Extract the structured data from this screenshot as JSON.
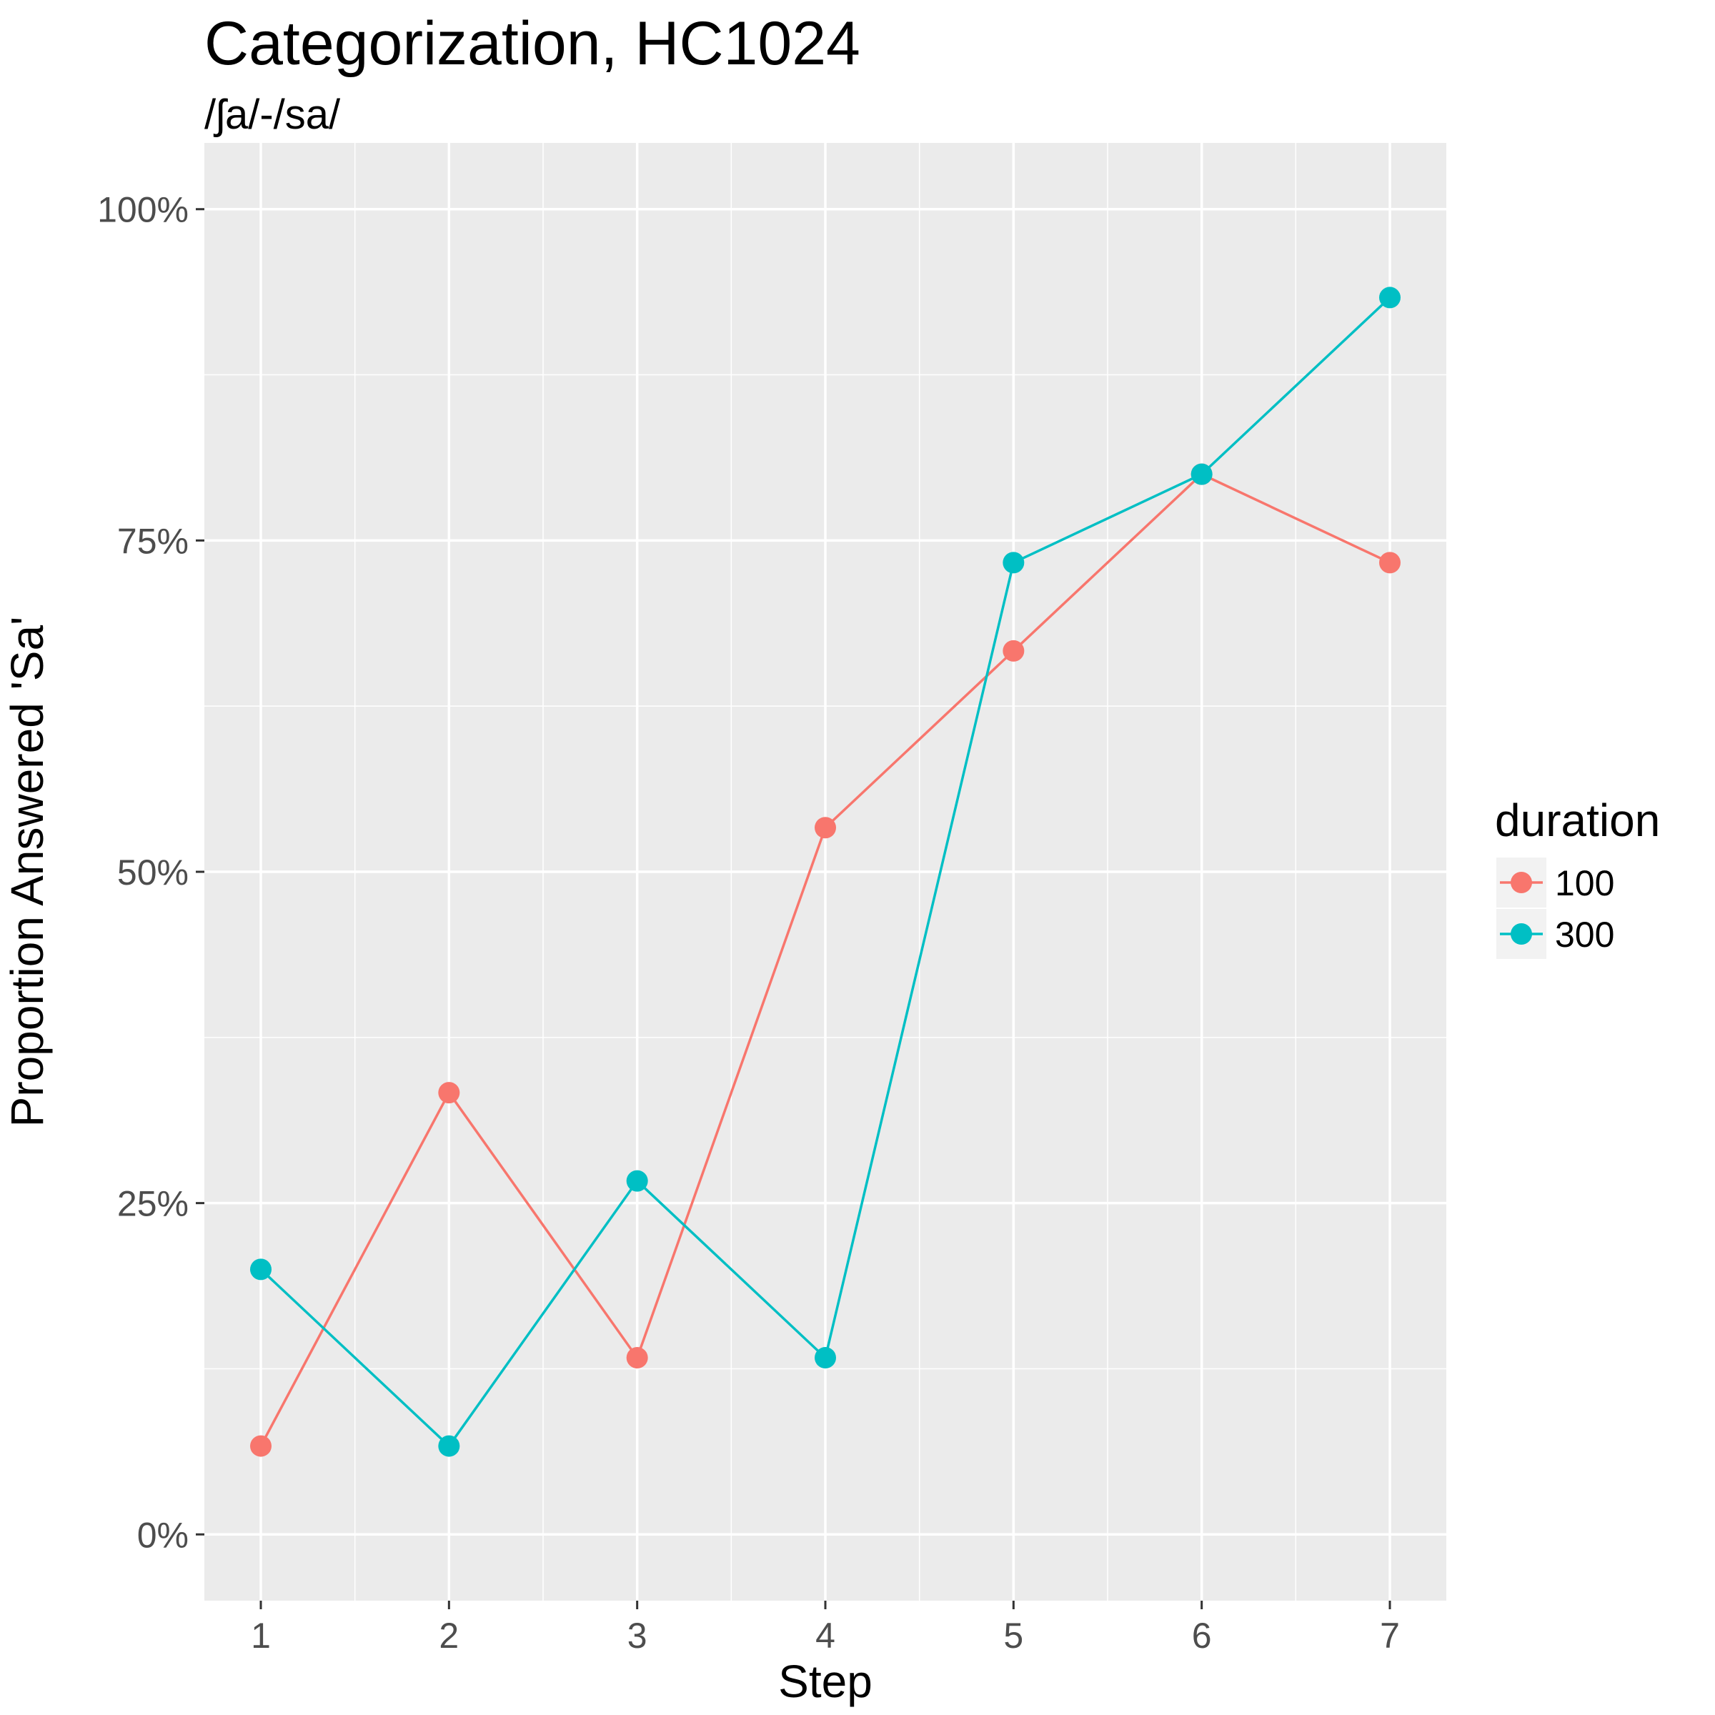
{
  "chart_data": {
    "type": "line",
    "title": "Categorization, HC1024",
    "subtitle": "/ʃa/-/sa/",
    "xlabel": "Step",
    "ylabel": "Proportion Answered 'Sa'",
    "x": [
      1,
      2,
      3,
      4,
      5,
      6,
      7
    ],
    "x_tick_labels": [
      "1",
      "2",
      "3",
      "4",
      "5",
      "6",
      "7"
    ],
    "xlim": [
      0.7,
      7.3
    ],
    "ylim": [
      -0.05,
      1.05
    ],
    "y_ticks": [
      0,
      0.25,
      0.5,
      0.75,
      1.0
    ],
    "y_tick_labels": [
      "0%",
      "25%",
      "50%",
      "75%",
      "100%"
    ],
    "grid": true,
    "legend": {
      "title": "duration",
      "position": "right"
    },
    "series": [
      {
        "name": "100",
        "color": "#F8766D",
        "values": [
          0.0667,
          0.3333,
          0.1333,
          0.5333,
          0.6667,
          0.8,
          0.7333
        ]
      },
      {
        "name": "300",
        "color": "#00BFC4",
        "values": [
          0.2,
          0.0667,
          0.2667,
          0.1333,
          0.7333,
          0.8,
          0.9333
        ]
      }
    ]
  }
}
